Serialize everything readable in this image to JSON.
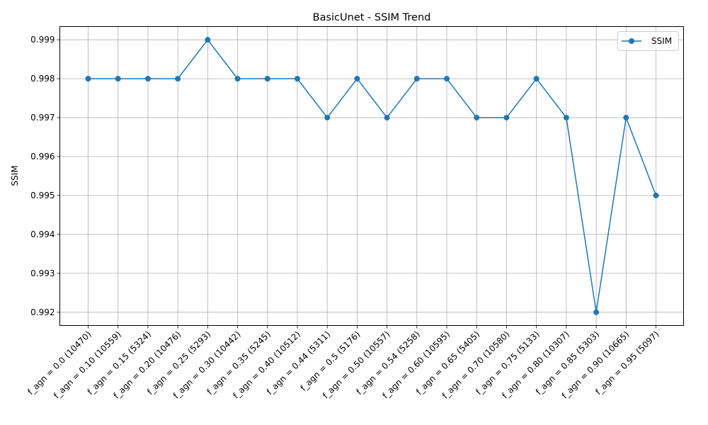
{
  "chart_data": {
    "type": "line",
    "title": "BasicUnet - SSIM Trend",
    "xlabel": "",
    "ylabel": "SSIM",
    "categories": [
      "f_agn = 0.0 (10470)",
      "f_agn = 0.10 (10559)",
      "f_agn = 0.15 (5324)",
      "f_agn = 0.20 (10476)",
      "f_agn = 0.25 (5293)",
      "f_agn = 0.30 (10442)",
      "f_agn = 0.35 (5245)",
      "f_agn = 0.40 (10512)",
      "f_agn = 0.44 (5311)",
      "f_agn = 0.5 (5176)",
      "f_agn = 0.50 (10557)",
      "f_agn = 0.54 (5258)",
      "f_agn = 0.60 (10595)",
      "f_agn = 0.65 (5405)",
      "f_agn = 0.70 (10580)",
      "f_agn = 0.75 (5133)",
      "f_agn = 0.80 (10307)",
      "f_agn = 0.85 (5303)",
      "f_agn = 0.90 (10665)",
      "f_agn = 0.95 (5097)"
    ],
    "series": [
      {
        "name": "SSIM",
        "color": "#1f77b4",
        "marker": "circle",
        "values": [
          0.998,
          0.998,
          0.998,
          0.998,
          0.999,
          0.998,
          0.998,
          0.998,
          0.997,
          0.998,
          0.997,
          0.998,
          0.998,
          0.997,
          0.997,
          0.998,
          0.997,
          0.992,
          0.997,
          0.995
        ]
      }
    ],
    "ylim": [
      0.99166,
      0.99934
    ],
    "yticks": [
      0.992,
      0.993,
      0.994,
      0.995,
      0.996,
      0.997,
      0.998,
      0.999
    ],
    "ytick_labels": [
      "0.992",
      "0.993",
      "0.994",
      "0.995",
      "0.996",
      "0.997",
      "0.998",
      "0.999"
    ],
    "grid": true,
    "legend_position": "top-right",
    "xtick_rotation_deg": 45
  }
}
